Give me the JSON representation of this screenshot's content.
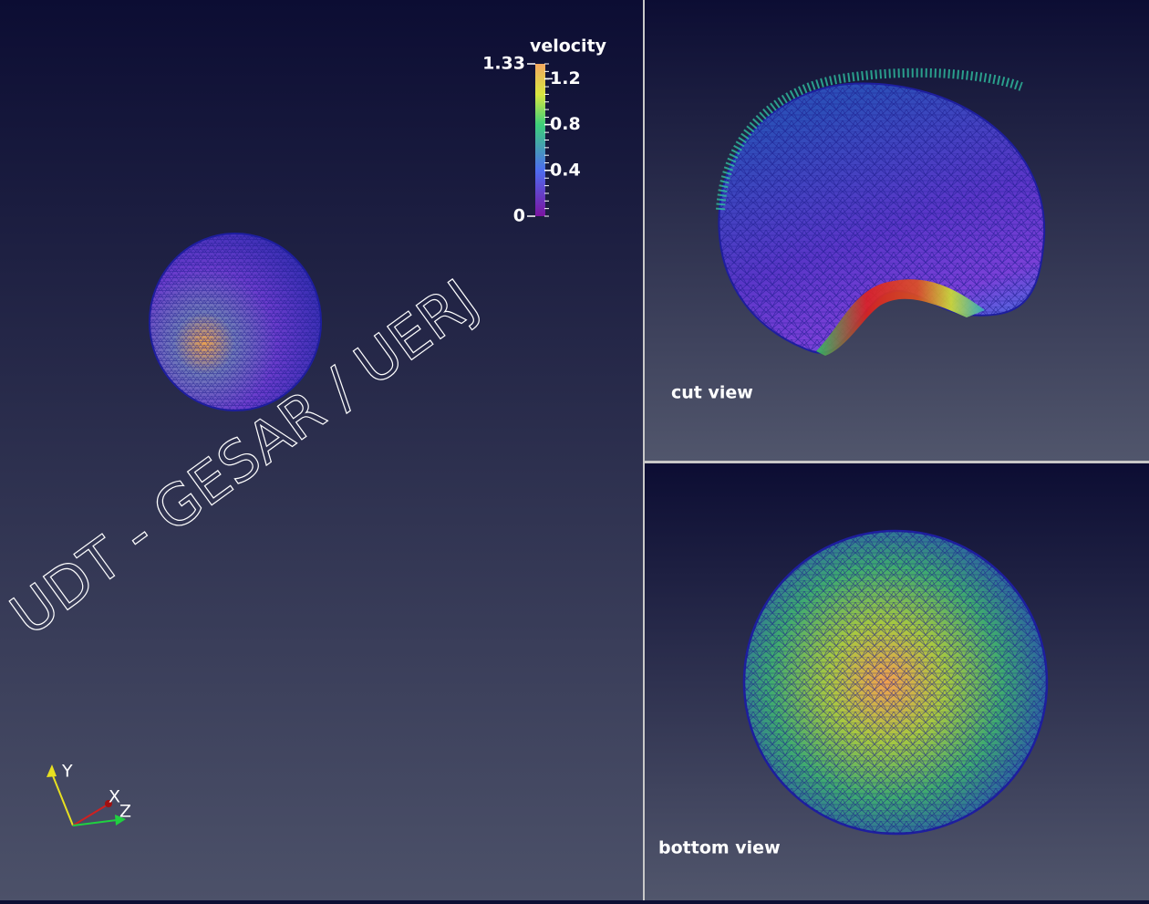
{
  "main_view": {
    "colorbar": {
      "title": "velocity",
      "range": [
        0,
        1.33
      ],
      "ticks": [
        1.33,
        1.2,
        0.8,
        0.4,
        0
      ]
    },
    "watermark": "UDT - GESAR / UERJ",
    "axes": {
      "y": "Y",
      "x": "X",
      "z": "Z"
    }
  },
  "cut_view": {
    "label": "cut view"
  },
  "bottom_view": {
    "label": "bottom view"
  }
}
